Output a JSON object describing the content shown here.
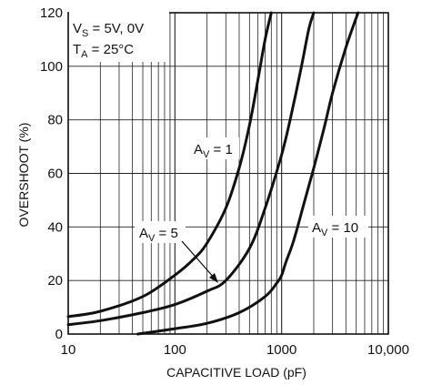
{
  "chart_data": {
    "type": "line",
    "xlabel": "CAPACITIVE LOAD (pF)",
    "ylabel": "OVERSHOOT (%)",
    "x_scale": "log",
    "xlim": [
      10,
      10000
    ],
    "ylim": [
      0,
      120
    ],
    "x_ticks": [
      10,
      100,
      1000,
      10000
    ],
    "x_tick_labels": [
      "10",
      "100",
      "1000",
      "10,000"
    ],
    "y_ticks": [
      0,
      20,
      40,
      60,
      80,
      100,
      120
    ],
    "y_tick_labels": [
      "0",
      "20",
      "40",
      "60",
      "80",
      "100",
      "120"
    ],
    "grid": true,
    "conditions": [
      {
        "main": "V",
        "sub": "S",
        "rest": " = 5V, 0V"
      },
      {
        "main": "T",
        "sub": "A",
        "rest": " = 25°C"
      }
    ],
    "series": [
      {
        "name": "AV = 1",
        "label_main": "A",
        "label_sub": "V",
        "label_rest": " = 1",
        "x": [
          10,
          20,
          50,
          100,
          150,
          200,
          300,
          400,
          500,
          600,
          700,
          800
        ],
        "y": [
          6.5,
          8.5,
          14,
          22,
          28,
          34,
          47,
          62,
          78,
          95,
          110,
          120
        ]
      },
      {
        "name": "AV = 5",
        "label_main": "A",
        "label_sub": "V",
        "label_rest": " = 5",
        "x": [
          10,
          20,
          50,
          100,
          200,
          300,
          500,
          700,
          1000,
          1200,
          1500,
          1800,
          2000
        ],
        "y": [
          3.5,
          5,
          8,
          11,
          16,
          20,
          32,
          47,
          67,
          80,
          98,
          114,
          120
        ]
      },
      {
        "name": "AV = 10",
        "label_main": "A",
        "label_sub": "V",
        "label_rest": " = 10",
        "x": [
          45,
          100,
          200,
          400,
          700,
          900,
          1000,
          1100,
          1300,
          1600,
          2000,
          2500,
          3000,
          4000,
          5200
        ],
        "y": [
          0,
          2,
          4,
          8,
          14,
          19,
          22,
          27,
          35,
          48,
          62,
          77,
          90,
          107,
          120
        ]
      }
    ]
  }
}
